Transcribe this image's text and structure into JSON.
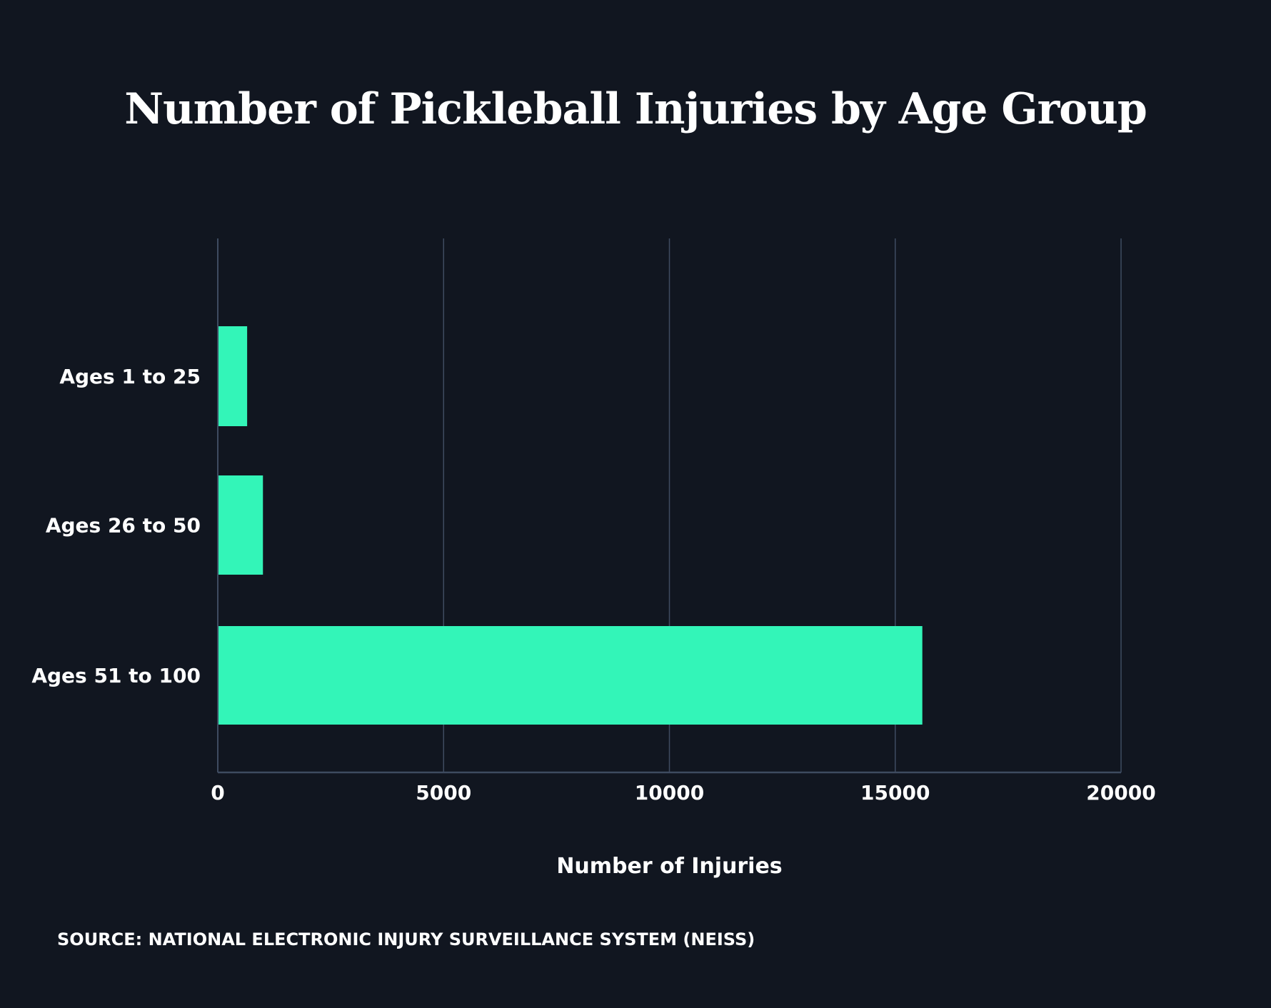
{
  "chart_data": {
    "type": "bar",
    "orientation": "horizontal",
    "title": "Number of Pickleball Injuries by Age Group",
    "categories": [
      "Ages 1 to 25",
      "Ages 26 to 50",
      "Ages 51 to 100"
    ],
    "values": [
      650,
      1000,
      15600
    ],
    "xlabel": "Number of Injuries",
    "ylabel": "",
    "xlim": [
      0,
      20000
    ],
    "xticks": [
      "0",
      "5000",
      "10000",
      "15000",
      "20000"
    ],
    "grid": true,
    "bar_color": "#33F5B8",
    "background": "#111620",
    "grid_color": "#3E4B60",
    "source": "SOURCE: NATIONAL ELECTRONIC INJURY SURVEILLANCE SYSTEM (NEISS)"
  }
}
